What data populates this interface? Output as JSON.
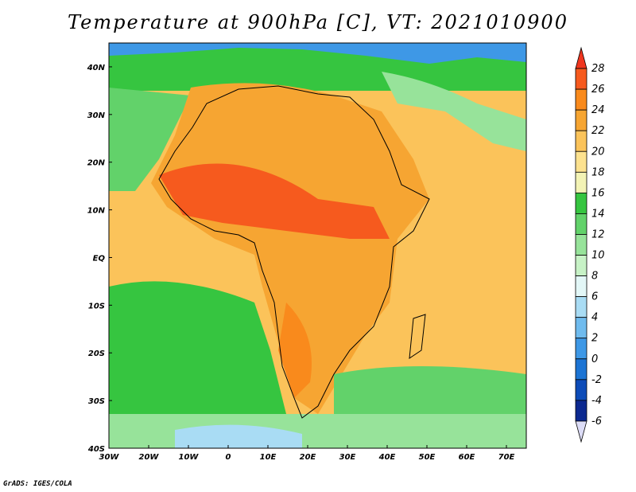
{
  "title": "Temperature at 900hPa [C], VT: 2021010900",
  "footer": "GrADS: IGES/COLA",
  "map": {
    "projection": "latlon",
    "lon_range": [
      -30,
      75
    ],
    "lat_range": [
      -40,
      45
    ],
    "x_ticks": [
      "30W",
      "20W",
      "10W",
      "0",
      "10E",
      "20E",
      "30E",
      "40E",
      "50E",
      "60E",
      "70E"
    ],
    "y_ticks": [
      "40N",
      "30N",
      "20N",
      "10N",
      "EQ",
      "10S",
      "20S",
      "30S",
      "40S"
    ]
  },
  "colorbar": {
    "labels": [
      "28",
      "26",
      "24",
      "22",
      "20",
      "18",
      "16",
      "14",
      "12",
      "10",
      "8",
      "6",
      "4",
      "2",
      "0",
      "-2",
      "-4",
      "-6"
    ],
    "colors": [
      "#f0361f",
      "#f65a1e",
      "#f98a1c",
      "#f6a532",
      "#fbc35a",
      "#fde28f",
      "#f3f3b5",
      "#36c540",
      "#62d26a",
      "#97e39a",
      "#c7f2c6",
      "#e3f7f7",
      "#a9dcf4",
      "#6fbbee",
      "#3e98e6",
      "#1c74d4",
      "#0d4cb8",
      "#0c2990",
      "#dcdcf6"
    ]
  }
}
